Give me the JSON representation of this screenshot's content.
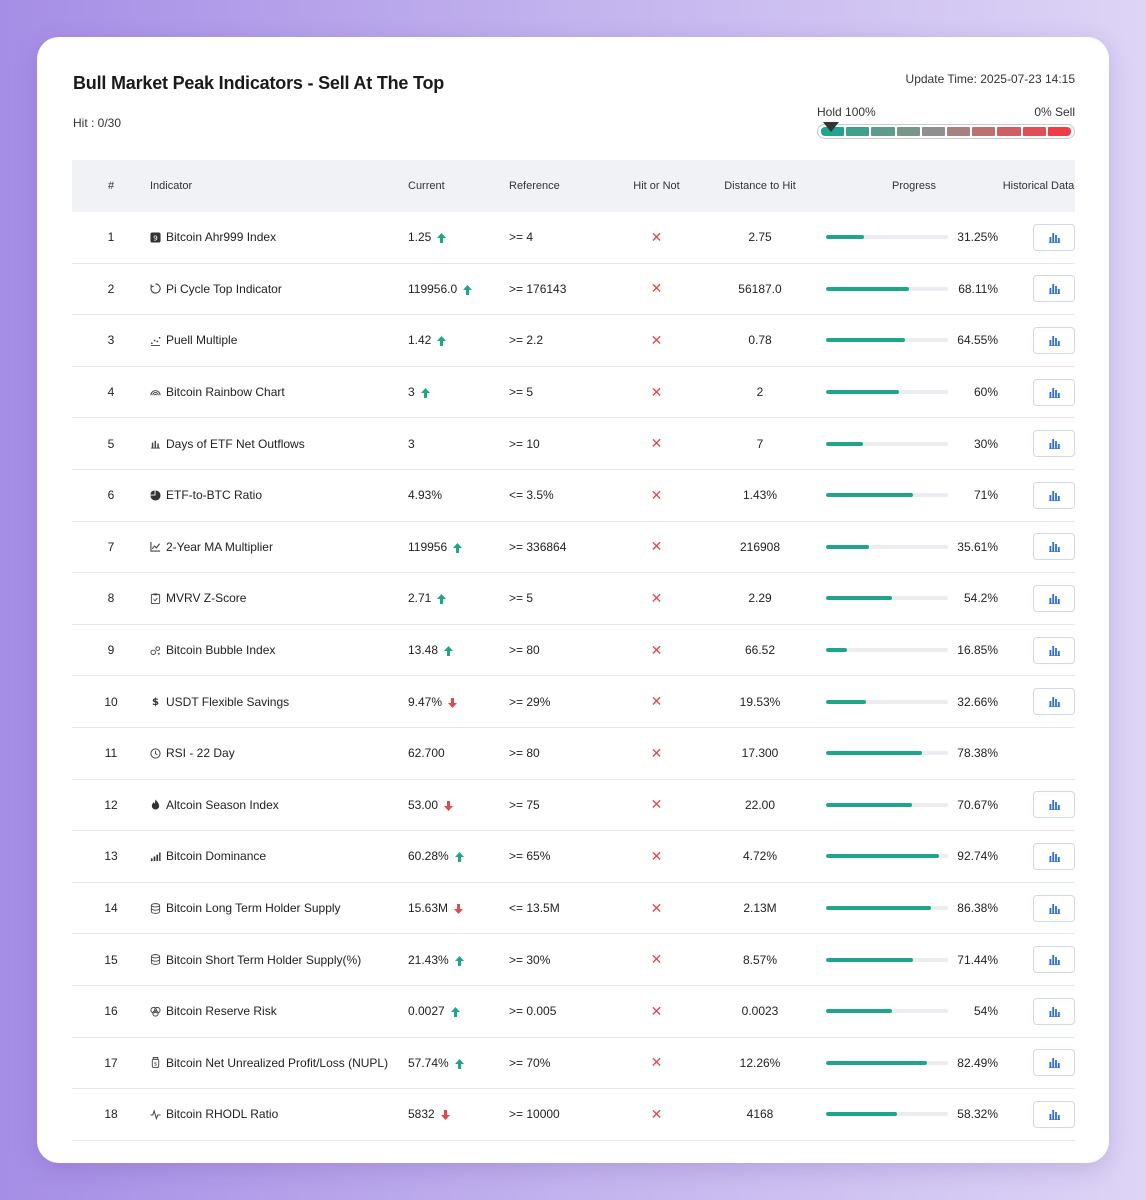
{
  "title": "Bull Market Peak Indicators - Sell At The Top",
  "hit_label": "Hit : 0/30",
  "update_time": "Update Time: 2025-07-23 14:15",
  "gauge": {
    "left_label": "Hold 100%",
    "right_label": "0% Sell",
    "segments": [
      "#1fa58c",
      "#3fa08e",
      "#5d9b8c",
      "#7a968a",
      "#8f8f8f",
      "#a88080",
      "#bd7073",
      "#cf5f64",
      "#e04e56",
      "#ee3d48"
    ]
  },
  "headers": {
    "num": "#",
    "indicator": "Indicator",
    "current": "Current",
    "reference": "Reference",
    "hit": "Hit or Not",
    "distance": "Distance to Hit",
    "progress": "Progress",
    "historical": "Historical Data"
  },
  "colors": {
    "up": "#1fa58c",
    "down": "#e0494e",
    "progress": "#1fa58c",
    "miss": "#e0494e",
    "chart_icon": "#2d6fd6"
  },
  "rows": [
    {
      "num": "1",
      "indicator": "Bitcoin Ahr999 Index",
      "icon": "ahr999-icon",
      "current": "1.25",
      "trend": "up",
      "reference": ">= 4",
      "hit": "✕",
      "distance": "2.75",
      "progress_label": "31.25%",
      "progress": 31.25,
      "has_history": true
    },
    {
      "num": "2",
      "indicator": "Pi Cycle Top Indicator",
      "icon": "pi-cycle-icon",
      "current": "119956.0",
      "trend": "up",
      "reference": ">= 176143",
      "hit": "✕",
      "distance": "56187.0",
      "progress_label": "68.11%",
      "progress": 68.11,
      "has_history": true
    },
    {
      "num": "3",
      "indicator": "Puell Multiple",
      "icon": "puell-icon",
      "current": "1.42",
      "trend": "up",
      "reference": ">= 2.2",
      "hit": "✕",
      "distance": "0.78",
      "progress_label": "64.55%",
      "progress": 64.55,
      "has_history": true
    },
    {
      "num": "4",
      "indicator": "Bitcoin Rainbow Chart",
      "icon": "rainbow-icon",
      "current": "3",
      "trend": "up",
      "reference": ">= 5",
      "hit": "✕",
      "distance": "2",
      "progress_label": "60%",
      "progress": 60,
      "has_history": true
    },
    {
      "num": "5",
      "indicator": "Days of ETF Net Outflows",
      "icon": "bar-chart-icon",
      "current": "3",
      "trend": "none",
      "reference": ">= 10",
      "hit": "✕",
      "distance": "7",
      "progress_label": "30%",
      "progress": 30,
      "has_history": true
    },
    {
      "num": "6",
      "indicator": "ETF-to-BTC Ratio",
      "icon": "pie-chart-icon",
      "current": "4.93%",
      "trend": "none",
      "reference": "<= 3.5%",
      "hit": "✕",
      "distance": "1.43%",
      "progress_label": "71%",
      "progress": 71,
      "has_history": true
    },
    {
      "num": "7",
      "indicator": "2-Year MA Multiplier",
      "icon": "line-chart-icon",
      "current": "119956",
      "trend": "up",
      "reference": ">= 336864",
      "hit": "✕",
      "distance": "216908",
      "progress_label": "35.61%",
      "progress": 35.61,
      "has_history": true
    },
    {
      "num": "8",
      "indicator": "MVRV Z-Score",
      "icon": "clipboard-icon",
      "current": "2.71",
      "trend": "up",
      "reference": ">= 5",
      "hit": "✕",
      "distance": "2.29",
      "progress_label": "54.2%",
      "progress": 54.2,
      "has_history": true
    },
    {
      "num": "9",
      "indicator": "Bitcoin Bubble Index",
      "icon": "bubble-icon",
      "current": "13.48",
      "trend": "up",
      "reference": ">= 80",
      "hit": "✕",
      "distance": "66.52",
      "progress_label": "16.85%",
      "progress": 16.85,
      "has_history": true
    },
    {
      "num": "10",
      "indicator": "USDT Flexible Savings",
      "icon": "dollar-icon",
      "current": "9.47%",
      "trend": "down",
      "reference": ">= 29%",
      "hit": "✕",
      "distance": "19.53%",
      "progress_label": "32.66%",
      "progress": 32.66,
      "has_history": true
    },
    {
      "num": "11",
      "indicator": "RSI - 22 Day",
      "icon": "clock-icon",
      "current": "62.700",
      "trend": "none",
      "reference": ">= 80",
      "hit": "✕",
      "distance": "17.300",
      "progress_label": "78.38%",
      "progress": 78.38,
      "has_history": false
    },
    {
      "num": "12",
      "indicator": "Altcoin Season Index",
      "icon": "flame-icon",
      "current": "53.00",
      "trend": "down",
      "reference": ">= 75",
      "hit": "✕",
      "distance": "22.00",
      "progress_label": "70.67%",
      "progress": 70.67,
      "has_history": true
    },
    {
      "num": "13",
      "indicator": "Bitcoin Dominance",
      "icon": "signal-icon",
      "current": "60.28%",
      "trend": "up",
      "reference": ">= 65%",
      "hit": "✕",
      "distance": "4.72%",
      "progress_label": "92.74%",
      "progress": 92.74,
      "has_history": true
    },
    {
      "num": "14",
      "indicator": "Bitcoin Long Term Holder Supply",
      "icon": "database-icon",
      "current": "15.63M",
      "trend": "down",
      "reference": "<= 13.5M",
      "hit": "✕",
      "distance": "2.13M",
      "progress_label": "86.38%",
      "progress": 86.38,
      "has_history": true
    },
    {
      "num": "15",
      "indicator": "Bitcoin Short Term Holder Supply(%)",
      "icon": "database-icon",
      "current": "21.43%",
      "trend": "up",
      "reference": ">= 30%",
      "hit": "✕",
      "distance": "8.57%",
      "progress_label": "71.44%",
      "progress": 71.44,
      "has_history": true
    },
    {
      "num": "16",
      "indicator": "Bitcoin Reserve Risk",
      "icon": "coins-icon",
      "current": "0.0027",
      "trend": "up",
      "reference": ">= 0.005",
      "hit": "✕",
      "distance": "0.0023",
      "progress_label": "54%",
      "progress": 54,
      "has_history": true
    },
    {
      "num": "17",
      "indicator": "Bitcoin Net Unrealized Profit/Loss (NUPL)",
      "icon": "jar-icon",
      "current": "57.74%",
      "trend": "up",
      "reference": ">= 70%",
      "hit": "✕",
      "distance": "12.26%",
      "progress_label": "82.49%",
      "progress": 82.49,
      "has_history": true
    },
    {
      "num": "18",
      "indicator": "Bitcoin RHODL Ratio",
      "icon": "pulse-icon",
      "current": "5832",
      "trend": "down",
      "reference": ">= 10000",
      "hit": "✕",
      "distance": "4168",
      "progress_label": "58.32%",
      "progress": 58.32,
      "has_history": true
    }
  ]
}
